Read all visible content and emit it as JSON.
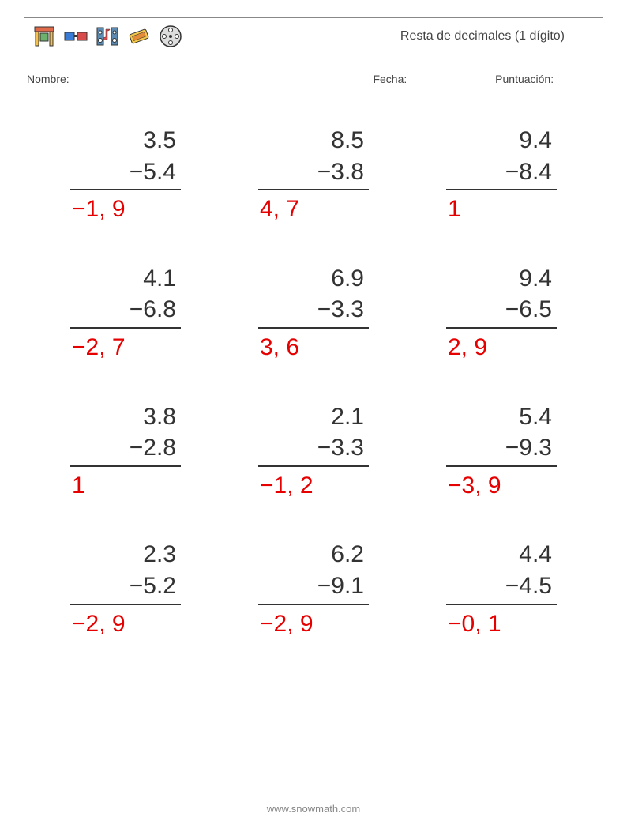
{
  "header": {
    "title": "Resta de decimales (1 dígito)"
  },
  "fields": {
    "name_label": "Nombre:",
    "date_label": "Fecha:",
    "score_label": "Puntuación:"
  },
  "style": {
    "numeric_color": "#333333",
    "answer_color": "#e60000",
    "rule_color": "#333333",
    "font_size_pt": 22,
    "columns": 3,
    "rows": 4
  },
  "problems": [
    {
      "minuend": "3.5",
      "subtrahend": "−5.4",
      "answer": "−1, 9"
    },
    {
      "minuend": "8.5",
      "subtrahend": "−3.8",
      "answer": "4, 7"
    },
    {
      "minuend": "9.4",
      "subtrahend": "−8.4",
      "answer": "1"
    },
    {
      "minuend": "4.1",
      "subtrahend": "−6.8",
      "answer": "−2, 7"
    },
    {
      "minuend": "6.9",
      "subtrahend": "−3.3",
      "answer": "3, 6"
    },
    {
      "minuend": "9.4",
      "subtrahend": "−6.5",
      "answer": "2, 9"
    },
    {
      "minuend": "3.8",
      "subtrahend": "−2.8",
      "answer": "1"
    },
    {
      "minuend": "2.1",
      "subtrahend": "−3.3",
      "answer": "−1, 2"
    },
    {
      "minuend": "5.4",
      "subtrahend": "−9.3",
      "answer": "−3, 9"
    },
    {
      "minuend": "2.3",
      "subtrahend": "−5.2",
      "answer": "−2, 9"
    },
    {
      "minuend": "6.2",
      "subtrahend": "−9.1",
      "answer": "−2, 9"
    },
    {
      "minuend": "4.4",
      "subtrahend": "−4.5",
      "answer": "−0, 1"
    }
  ],
  "icons": [
    "carousel-icon",
    "glasses-3d-icon",
    "speakers-icon",
    "ticket-icon",
    "film-reel-icon"
  ],
  "footer": {
    "url": "www.snowmath.com"
  }
}
